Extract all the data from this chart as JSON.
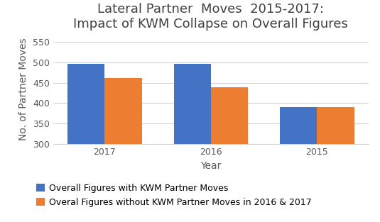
{
  "title_line1": "Lateral Partner  Moves  2015-2017:",
  "title_line2": "Impact of KWM Collapse on Overall Figures",
  "categories": [
    "2017",
    "2016",
    "2015"
  ],
  "series1_values": [
    495,
    495,
    390
  ],
  "series2_values": [
    462,
    438,
    390
  ],
  "series1_label": "Overall Figures with KWM Partner Moves",
  "series2_label": "Overal Figures without KWM Partner Moves in 2016 & 2017",
  "series1_color": "#4472C4",
  "series2_color": "#ED7D31",
  "xlabel": "Year",
  "ylabel": "No. of Partner Moves",
  "ylim_min": 300,
  "ylim_max": 570,
  "yticks": [
    300,
    350,
    400,
    450,
    500,
    550
  ],
  "bar_width": 0.35,
  "bar_bottom": 300,
  "title_fontsize": 13,
  "axis_fontsize": 10,
  "tick_fontsize": 9,
  "legend_fontsize": 9,
  "background_color": "#FFFFFF",
  "grid_color": "#D3D3D3"
}
